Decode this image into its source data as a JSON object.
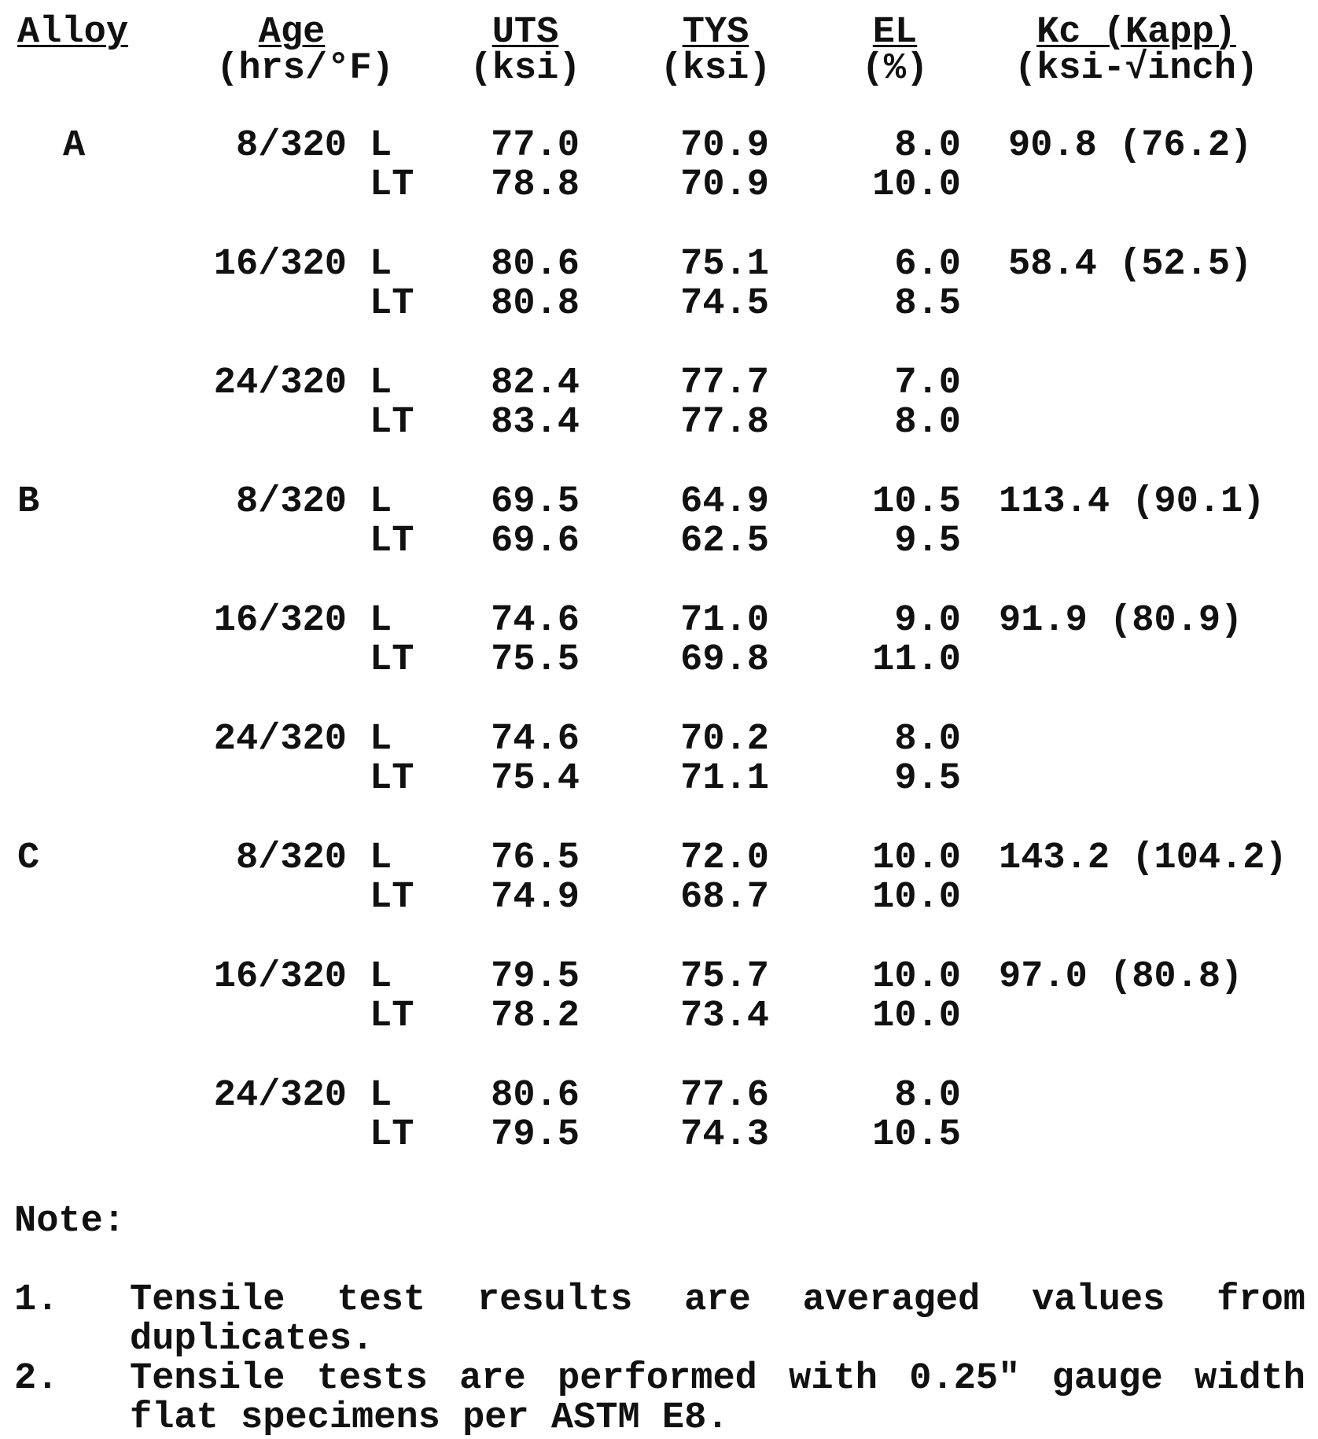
{
  "headers": {
    "alloy": "Alloy",
    "age": "Age",
    "age_unit": "(hrs/°F)",
    "uts": "UTS",
    "uts_unit": "(ksi)",
    "tys": "TYS",
    "tys_unit": "(ksi)",
    "el": "EL",
    "el_unit": "(%)",
    "kc": "Kc (Kapp)",
    "kc_unit": "(ksi-√inch)"
  },
  "groups": [
    {
      "alloy": "A",
      "ages": [
        {
          "age": "8/320",
          "rows": [
            {
              "dir": "L",
              "uts": "77.0",
              "tys": "70.9",
              "el": "8.0",
              "kc": "90.8 (76.2)"
            },
            {
              "dir": "LT",
              "uts": "78.8",
              "tys": "70.9",
              "el": "10.0",
              "kc": ""
            }
          ]
        },
        {
          "age": "16/320",
          "rows": [
            {
              "dir": "L",
              "uts": "80.6",
              "tys": "75.1",
              "el": "6.0",
              "kc": "58.4 (52.5)"
            },
            {
              "dir": "LT",
              "uts": "80.8",
              "tys": "74.5",
              "el": "8.5",
              "kc": ""
            }
          ]
        },
        {
          "age": "24/320",
          "rows": [
            {
              "dir": "L",
              "uts": "82.4",
              "tys": "77.7",
              "el": "7.0",
              "kc": ""
            },
            {
              "dir": "LT",
              "uts": "83.4",
              "tys": "77.8",
              "el": "8.0",
              "kc": ""
            }
          ]
        }
      ]
    },
    {
      "alloy": "B",
      "ages": [
        {
          "age": "8/320",
          "rows": [
            {
              "dir": "L",
              "uts": "69.5",
              "tys": "64.9",
              "el": "10.5",
              "kc": "113.4 (90.1)"
            },
            {
              "dir": "LT",
              "uts": "69.6",
              "tys": "62.5",
              "el": "9.5",
              "kc": ""
            }
          ]
        },
        {
          "age": "16/320",
          "rows": [
            {
              "dir": "L",
              "uts": "74.6",
              "tys": "71.0",
              "el": "9.0",
              "kc": "91.9 (80.9)"
            },
            {
              "dir": "LT",
              "uts": "75.5",
              "tys": "69.8",
              "el": "11.0",
              "kc": ""
            }
          ]
        },
        {
          "age": "24/320",
          "rows": [
            {
              "dir": "L",
              "uts": "74.6",
              "tys": "70.2",
              "el": "8.0",
              "kc": ""
            },
            {
              "dir": "LT",
              "uts": "75.4",
              "tys": "71.1",
              "el": "9.5",
              "kc": ""
            }
          ]
        }
      ]
    },
    {
      "alloy": "C",
      "ages": [
        {
          "age": "8/320",
          "rows": [
            {
              "dir": "L",
              "uts": "76.5",
              "tys": "72.0",
              "el": "10.0",
              "kc": "143.2 (104.2)"
            },
            {
              "dir": "LT",
              "uts": "74.9",
              "tys": "68.7",
              "el": "10.0",
              "kc": ""
            }
          ]
        },
        {
          "age": "16/320",
          "rows": [
            {
              "dir": "L",
              "uts": "79.5",
              "tys": "75.7",
              "el": "10.0",
              "kc": "97.0 (80.8)"
            },
            {
              "dir": "LT",
              "uts": "78.2",
              "tys": "73.4",
              "el": "10.0",
              "kc": ""
            }
          ]
        },
        {
          "age": "24/320",
          "rows": [
            {
              "dir": "L",
              "uts": "80.6",
              "tys": "77.6",
              "el": "8.0",
              "kc": ""
            },
            {
              "dir": "LT",
              "uts": "79.5",
              "tys": "74.3",
              "el": "10.5",
              "kc": ""
            }
          ]
        }
      ]
    }
  ],
  "notes": {
    "heading": "Note:",
    "items": [
      {
        "num": "1.",
        "line1": "Tensile test results are averaged values from",
        "line2": "duplicates."
      },
      {
        "num": "2.",
        "line1": "Tensile tests are performed with 0.25\" gauge width",
        "line2": "flat specimens per ASTM E8."
      }
    ]
  }
}
